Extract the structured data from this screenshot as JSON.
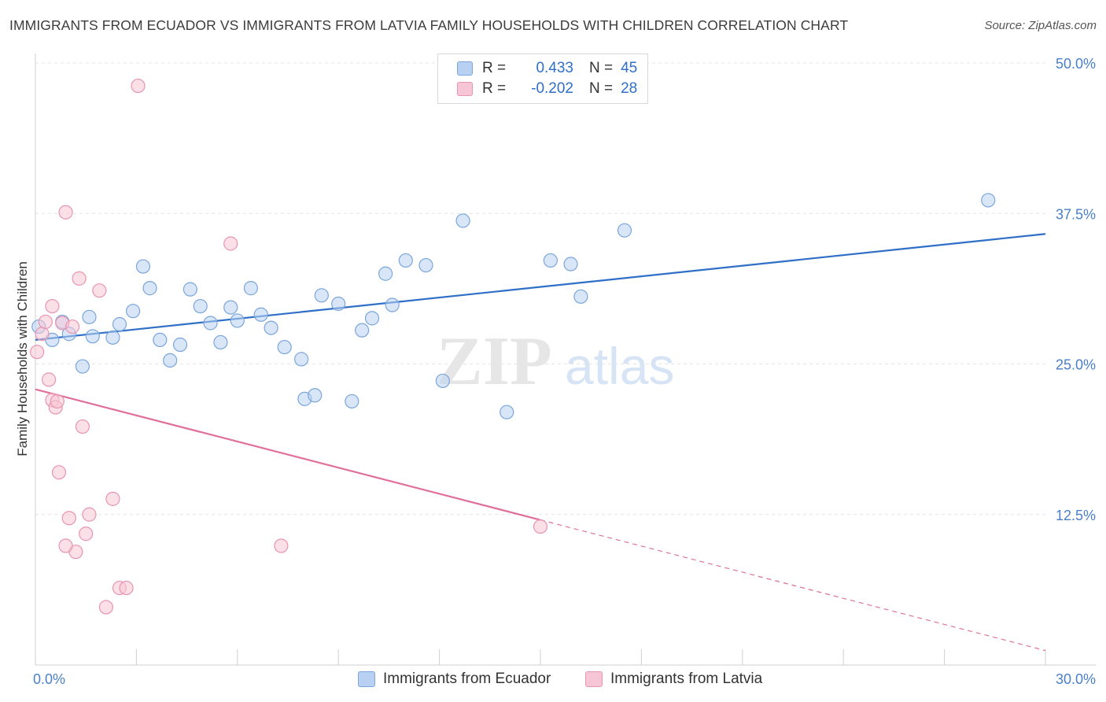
{
  "header": {
    "title": "IMMIGRANTS FROM ECUADOR VS IMMIGRANTS FROM LATVIA FAMILY HOUSEHOLDS WITH CHILDREN CORRELATION CHART",
    "source": "Source: ZipAtlas.com"
  },
  "legend": {
    "ecuador": {
      "r_label": "R =",
      "r_value": "0.433",
      "n_label": "N =",
      "n_value": "45"
    },
    "latvia": {
      "r_label": "R =",
      "r_value": "-0.202",
      "n_label": "N =",
      "n_value": "28"
    }
  },
  "colors": {
    "ecuador_fill": "#b8d1f2",
    "ecuador_stroke": "#7aa6dc",
    "ecuador_line": "#2f6fc8",
    "latvia_fill": "#f7c6d6",
    "latvia_stroke": "#e894b1",
    "latvia_line": "#e0709a"
  },
  "watermark": {
    "zip": "ZIP",
    "atlas": "atlas"
  },
  "chart_data": {
    "type": "scatter",
    "xlabel": "",
    "ylabel": "Family Households with Children",
    "xlim": [
      0,
      30
    ],
    "ylim": [
      0,
      50
    ],
    "x_tick_labels": [
      "0.0%",
      "30.0%"
    ],
    "y_ticks": [
      12.5,
      25.0,
      37.5,
      50.0
    ],
    "y_tick_labels": [
      "12.5%",
      "25.0%",
      "37.5%",
      "50.0%"
    ],
    "grid": true,
    "legend_position": "top-center",
    "series": [
      {
        "name": "Immigrants from Ecuador",
        "color": "#7aa6dc",
        "trend": {
          "x": [
            0,
            30
          ],
          "y": [
            27.0,
            35.8
          ],
          "dashed_from": null
        },
        "points": [
          [
            0.1,
            28.1
          ],
          [
            0.5,
            27.0
          ],
          [
            0.8,
            28.5
          ],
          [
            1.0,
            27.5
          ],
          [
            1.4,
            24.8
          ],
          [
            1.6,
            28.9
          ],
          [
            1.7,
            27.3
          ],
          [
            2.3,
            27.2
          ],
          [
            2.5,
            28.3
          ],
          [
            2.9,
            29.4
          ],
          [
            3.2,
            33.1
          ],
          [
            3.4,
            31.3
          ],
          [
            3.7,
            27.0
          ],
          [
            4.0,
            25.3
          ],
          [
            4.3,
            26.6
          ],
          [
            4.6,
            31.2
          ],
          [
            4.9,
            29.8
          ],
          [
            5.2,
            28.4
          ],
          [
            5.5,
            26.8
          ],
          [
            5.8,
            29.7
          ],
          [
            6.0,
            28.6
          ],
          [
            6.4,
            31.3
          ],
          [
            6.7,
            29.1
          ],
          [
            7.0,
            28.0
          ],
          [
            7.4,
            26.4
          ],
          [
            7.9,
            25.4
          ],
          [
            8.0,
            22.1
          ],
          [
            8.3,
            22.4
          ],
          [
            8.5,
            30.7
          ],
          [
            9.0,
            30.0
          ],
          [
            9.4,
            21.9
          ],
          [
            9.7,
            27.8
          ],
          [
            10.0,
            28.8
          ],
          [
            10.4,
            32.5
          ],
          [
            10.6,
            29.9
          ],
          [
            11.0,
            33.6
          ],
          [
            11.6,
            33.2
          ],
          [
            12.1,
            23.6
          ],
          [
            12.7,
            36.9
          ],
          [
            14.0,
            21.0
          ],
          [
            15.3,
            33.6
          ],
          [
            15.9,
            33.3
          ],
          [
            16.2,
            30.6
          ],
          [
            17.5,
            36.1
          ],
          [
            28.3,
            38.6
          ]
        ]
      },
      {
        "name": "Immigrants from Latvia",
        "color": "#e894b1",
        "trend": {
          "x": [
            0,
            30
          ],
          "y": [
            22.9,
            1.2
          ],
          "dashed_from": 15.0
        },
        "points": [
          [
            0.05,
            26.0
          ],
          [
            0.2,
            27.5
          ],
          [
            0.3,
            28.5
          ],
          [
            0.4,
            23.7
          ],
          [
            0.5,
            29.8
          ],
          [
            0.5,
            22.0
          ],
          [
            0.6,
            21.4
          ],
          [
            0.65,
            21.9
          ],
          [
            0.7,
            16.0
          ],
          [
            0.8,
            28.4
          ],
          [
            0.9,
            37.6
          ],
          [
            1.0,
            12.2
          ],
          [
            1.1,
            28.1
          ],
          [
            1.2,
            9.4
          ],
          [
            1.3,
            32.1
          ],
          [
            1.4,
            19.8
          ],
          [
            1.5,
            10.9
          ],
          [
            1.6,
            12.5
          ],
          [
            1.9,
            31.1
          ],
          [
            2.1,
            4.8
          ],
          [
            2.3,
            13.8
          ],
          [
            2.5,
            6.4
          ],
          [
            2.7,
            6.4
          ],
          [
            3.05,
            48.1
          ],
          [
            5.8,
            35.0
          ],
          [
            7.3,
            9.9
          ],
          [
            15.0,
            11.5
          ],
          [
            0.9,
            9.9
          ]
        ]
      }
    ]
  },
  "bottom_legend": {
    "ecuador_label": "Immigrants from Ecuador",
    "latvia_label": "Immigrants from Latvia"
  }
}
